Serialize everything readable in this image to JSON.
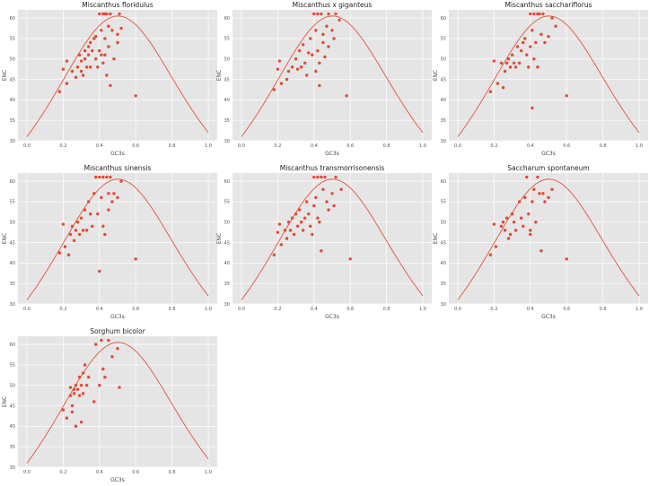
{
  "figure": {
    "xlabel": "GC3s",
    "ylabel": "ENC",
    "xlim": [
      0,
      1
    ],
    "ylim": [
      30,
      62
    ],
    "x_ticks": [
      "0.0",
      "0.2",
      "0.4",
      "0.6",
      "0.8",
      "1.0"
    ],
    "y_ticks": [
      "30",
      "35",
      "40",
      "45",
      "50",
      "55",
      "60"
    ],
    "grid": true,
    "colors": {
      "background": "#e5e5e5",
      "grid": "#ffffff",
      "point": "#e24a33",
      "curve": "#e2553b"
    }
  },
  "chart_data": [
    {
      "type": "scatter",
      "title": "Miscanthus floridulus",
      "xlabel": "GC3s",
      "ylabel": "ENC",
      "curve": "expected ENC = 2 + s + 29/(s^2 + (1-s)^2)",
      "points": [
        [
          0.18,
          42
        ],
        [
          0.2,
          47.5
        ],
        [
          0.22,
          49.5
        ],
        [
          0.22,
          44
        ],
        [
          0.25,
          47
        ],
        [
          0.27,
          45.5
        ],
        [
          0.28,
          48
        ],
        [
          0.29,
          51
        ],
        [
          0.3,
          49.5
        ],
        [
          0.3,
          47
        ],
        [
          0.31,
          46
        ],
        [
          0.32,
          52
        ],
        [
          0.32,
          50
        ],
        [
          0.33,
          48
        ],
        [
          0.34,
          53
        ],
        [
          0.34,
          51
        ],
        [
          0.35,
          48
        ],
        [
          0.35,
          54
        ],
        [
          0.36,
          52
        ],
        [
          0.37,
          55
        ],
        [
          0.38,
          55.5
        ],
        [
          0.38,
          50
        ],
        [
          0.39,
          48
        ],
        [
          0.4,
          61
        ],
        [
          0.4,
          52
        ],
        [
          0.41,
          57
        ],
        [
          0.41,
          51
        ],
        [
          0.42,
          61
        ],
        [
          0.42,
          49
        ],
        [
          0.43,
          61
        ],
        [
          0.43,
          55
        ],
        [
          0.43,
          51
        ],
        [
          0.44,
          61
        ],
        [
          0.44,
          46
        ],
        [
          0.45,
          58
        ],
        [
          0.45,
          53
        ],
        [
          0.46,
          61
        ],
        [
          0.46,
          43.5
        ],
        [
          0.47,
          57
        ],
        [
          0.48,
          50
        ],
        [
          0.5,
          56
        ],
        [
          0.5,
          54
        ],
        [
          0.51,
          61
        ],
        [
          0.52,
          57.5
        ],
        [
          0.6,
          41
        ]
      ]
    },
    {
      "type": "scatter",
      "title": "Miscanthus x giganteus",
      "xlabel": "GC3s",
      "ylabel": "ENC",
      "curve": "expected ENC = 2 + s + 29/(s^2 + (1-s)^2)",
      "points": [
        [
          0.18,
          42.5
        ],
        [
          0.2,
          47.5
        ],
        [
          0.21,
          49.5
        ],
        [
          0.22,
          44
        ],
        [
          0.25,
          45
        ],
        [
          0.26,
          47
        ],
        [
          0.28,
          48
        ],
        [
          0.3,
          50
        ],
        [
          0.31,
          47.5
        ],
        [
          0.32,
          52
        ],
        [
          0.33,
          48
        ],
        [
          0.34,
          53.5
        ],
        [
          0.35,
          49
        ],
        [
          0.36,
          46
        ],
        [
          0.37,
          51.5
        ],
        [
          0.38,
          55
        ],
        [
          0.39,
          51
        ],
        [
          0.4,
          61
        ],
        [
          0.41,
          57
        ],
        [
          0.41,
          47
        ],
        [
          0.42,
          61
        ],
        [
          0.42,
          52
        ],
        [
          0.43,
          49
        ],
        [
          0.43,
          43.5
        ],
        [
          0.44,
          61
        ],
        [
          0.45,
          56
        ],
        [
          0.45,
          54
        ],
        [
          0.46,
          50.5
        ],
        [
          0.47,
          58
        ],
        [
          0.48,
          61
        ],
        [
          0.48,
          53
        ],
        [
          0.5,
          57
        ],
        [
          0.51,
          55
        ],
        [
          0.52,
          61
        ],
        [
          0.54,
          59.5
        ],
        [
          0.58,
          41
        ]
      ]
    },
    {
      "type": "scatter",
      "title": "Miscanthus sacchariflorus",
      "xlabel": "GC3s",
      "ylabel": "ENC",
      "curve": "expected ENC = 2 + s + 29/(s^2 + (1-s)^2)",
      "points": [
        [
          0.18,
          42
        ],
        [
          0.2,
          49.5
        ],
        [
          0.22,
          44
        ],
        [
          0.24,
          49
        ],
        [
          0.25,
          43
        ],
        [
          0.26,
          47
        ],
        [
          0.27,
          49
        ],
        [
          0.28,
          50
        ],
        [
          0.29,
          48
        ],
        [
          0.3,
          51
        ],
        [
          0.31,
          49
        ],
        [
          0.32,
          48
        ],
        [
          0.33,
          53
        ],
        [
          0.34,
          49
        ],
        [
          0.35,
          52
        ],
        [
          0.36,
          54
        ],
        [
          0.37,
          55
        ],
        [
          0.38,
          51
        ],
        [
          0.39,
          48
        ],
        [
          0.4,
          61
        ],
        [
          0.4,
          53
        ],
        [
          0.41,
          38
        ],
        [
          0.41,
          57
        ],
        [
          0.42,
          61
        ],
        [
          0.42,
          50
        ],
        [
          0.43,
          54
        ],
        [
          0.44,
          61
        ],
        [
          0.44,
          48
        ],
        [
          0.45,
          61
        ],
        [
          0.46,
          56
        ],
        [
          0.47,
          61
        ],
        [
          0.48,
          54
        ],
        [
          0.5,
          55.5
        ],
        [
          0.52,
          60
        ],
        [
          0.54,
          58
        ],
        [
          0.6,
          41
        ]
      ]
    },
    {
      "type": "scatter",
      "title": "Miscanthus sinensis",
      "xlabel": "GC3s",
      "ylabel": "ENC",
      "curve": "expected ENC = 2 + s + 29/(s^2 + (1-s)^2)",
      "points": [
        [
          0.18,
          42.5
        ],
        [
          0.2,
          49.5
        ],
        [
          0.21,
          44
        ],
        [
          0.23,
          42
        ],
        [
          0.24,
          47
        ],
        [
          0.25,
          49
        ],
        [
          0.26,
          45.5
        ],
        [
          0.27,
          48
        ],
        [
          0.28,
          50
        ],
        [
          0.29,
          47
        ],
        [
          0.3,
          51
        ],
        [
          0.31,
          48
        ],
        [
          0.32,
          53
        ],
        [
          0.33,
          48
        ],
        [
          0.34,
          55
        ],
        [
          0.35,
          52
        ],
        [
          0.36,
          49
        ],
        [
          0.37,
          57
        ],
        [
          0.38,
          61
        ],
        [
          0.39,
          52
        ],
        [
          0.4,
          61
        ],
        [
          0.4,
          38
        ],
        [
          0.41,
          56
        ],
        [
          0.42,
          61
        ],
        [
          0.42,
          49
        ],
        [
          0.43,
          47
        ],
        [
          0.44,
          61
        ],
        [
          0.45,
          57
        ],
        [
          0.45,
          53
        ],
        [
          0.46,
          61
        ],
        [
          0.47,
          55
        ],
        [
          0.48,
          57
        ],
        [
          0.5,
          56
        ],
        [
          0.52,
          60
        ],
        [
          0.6,
          41
        ]
      ]
    },
    {
      "type": "scatter",
      "title": "Miscanthus transmorrisonensis",
      "xlabel": "GC3s",
      "ylabel": "ENC",
      "curve": "expected ENC = 2 + s + 29/(s^2 + (1-s)^2)",
      "points": [
        [
          0.18,
          42
        ],
        [
          0.2,
          47.5
        ],
        [
          0.21,
          49.5
        ],
        [
          0.22,
          44.5
        ],
        [
          0.24,
          48
        ],
        [
          0.25,
          46
        ],
        [
          0.26,
          50
        ],
        [
          0.27,
          48
        ],
        [
          0.28,
          51
        ],
        [
          0.29,
          47
        ],
        [
          0.3,
          52
        ],
        [
          0.31,
          49
        ],
        [
          0.32,
          53
        ],
        [
          0.33,
          50
        ],
        [
          0.34,
          48
        ],
        [
          0.35,
          51
        ],
        [
          0.36,
          55
        ],
        [
          0.37,
          52
        ],
        [
          0.38,
          49
        ],
        [
          0.39,
          47
        ],
        [
          0.4,
          61
        ],
        [
          0.4,
          54
        ],
        [
          0.41,
          56
        ],
        [
          0.42,
          61
        ],
        [
          0.42,
          51
        ],
        [
          0.43,
          50
        ],
        [
          0.44,
          61
        ],
        [
          0.44,
          43
        ],
        [
          0.45,
          58
        ],
        [
          0.46,
          61
        ],
        [
          0.47,
          55
        ],
        [
          0.48,
          53
        ],
        [
          0.5,
          57
        ],
        [
          0.51,
          54
        ],
        [
          0.52,
          61
        ],
        [
          0.55,
          58
        ],
        [
          0.6,
          41
        ]
      ]
    },
    {
      "type": "scatter",
      "title": "Saccharum spontaneum",
      "xlabel": "GC3s",
      "ylabel": "ENC",
      "curve": "expected ENC = 2 + s + 29/(s^2 + (1-s)^2)",
      "points": [
        [
          0.18,
          42
        ],
        [
          0.2,
          49.5
        ],
        [
          0.21,
          44
        ],
        [
          0.24,
          49
        ],
        [
          0.25,
          50
        ],
        [
          0.26,
          48
        ],
        [
          0.27,
          51
        ],
        [
          0.28,
          46
        ],
        [
          0.29,
          47
        ],
        [
          0.3,
          52
        ],
        [
          0.31,
          50
        ],
        [
          0.32,
          48
        ],
        [
          0.34,
          55
        ],
        [
          0.35,
          51
        ],
        [
          0.36,
          49
        ],
        [
          0.37,
          56
        ],
        [
          0.38,
          61
        ],
        [
          0.39,
          52
        ],
        [
          0.4,
          48
        ],
        [
          0.4,
          47
        ],
        [
          0.41,
          55
        ],
        [
          0.42,
          58
        ],
        [
          0.43,
          50
        ],
        [
          0.44,
          61
        ],
        [
          0.45,
          57
        ],
        [
          0.46,
          43
        ],
        [
          0.47,
          57
        ],
        [
          0.48,
          55
        ],
        [
          0.5,
          56
        ],
        [
          0.52,
          58
        ],
        [
          0.6,
          41
        ]
      ]
    },
    {
      "type": "scatter",
      "title": "Sorghum bicolor",
      "xlabel": "GC3s",
      "ylabel": "ENC",
      "curve": "expected ENC = 2 + s + 29/(s^2 + (1-s)^2)",
      "points": [
        [
          0.2,
          44
        ],
        [
          0.22,
          42
        ],
        [
          0.24,
          49.5
        ],
        [
          0.24,
          47.5
        ],
        [
          0.25,
          45
        ],
        [
          0.25,
          43.5
        ],
        [
          0.26,
          49
        ],
        [
          0.26,
          48
        ],
        [
          0.27,
          50
        ],
        [
          0.27,
          40
        ],
        [
          0.28,
          49
        ],
        [
          0.29,
          52
        ],
        [
          0.29,
          47.5
        ],
        [
          0.3,
          50
        ],
        [
          0.3,
          41
        ],
        [
          0.31,
          53
        ],
        [
          0.31,
          48
        ],
        [
          0.32,
          55
        ],
        [
          0.33,
          50
        ],
        [
          0.34,
          52
        ],
        [
          0.37,
          46
        ],
        [
          0.38,
          60
        ],
        [
          0.4,
          50
        ],
        [
          0.41,
          61
        ],
        [
          0.42,
          54
        ],
        [
          0.43,
          52
        ],
        [
          0.45,
          61
        ],
        [
          0.47,
          57
        ],
        [
          0.5,
          59
        ],
        [
          0.51,
          49.5
        ]
      ]
    }
  ]
}
